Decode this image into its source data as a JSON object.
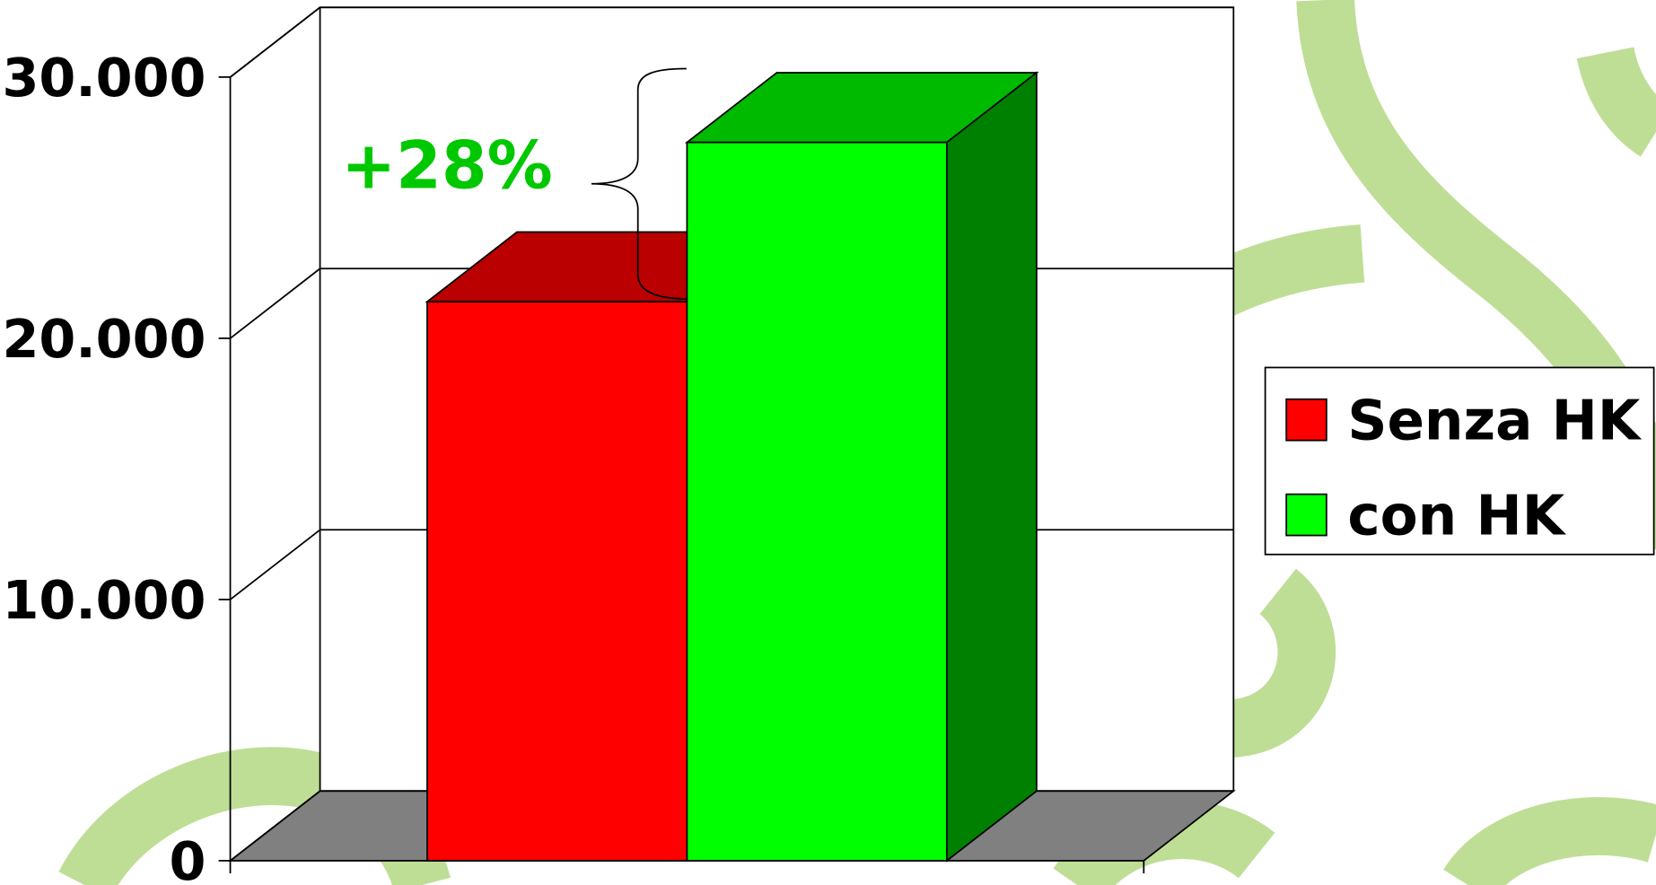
{
  "chart_data": {
    "type": "bar",
    "categories": [
      null
    ],
    "series": [
      {
        "name": "Senza HK",
        "color": "#ff0000",
        "values": [
          21400
        ]
      },
      {
        "name": "con HK",
        "color": "#00ff00",
        "values": [
          27500
        ]
      }
    ],
    "annotation": "+28%",
    "annotation_color": "#00c800",
    "ylim": [
      0,
      30000
    ],
    "yticks": [
      {
        "value": 0,
        "label": "0"
      },
      {
        "value": 10000,
        "label": "10.000"
      },
      {
        "value": 20000,
        "label": "20.000"
      },
      {
        "value": 30000,
        "label": "30.000"
      }
    ],
    "grid": true,
    "legend": "right"
  }
}
